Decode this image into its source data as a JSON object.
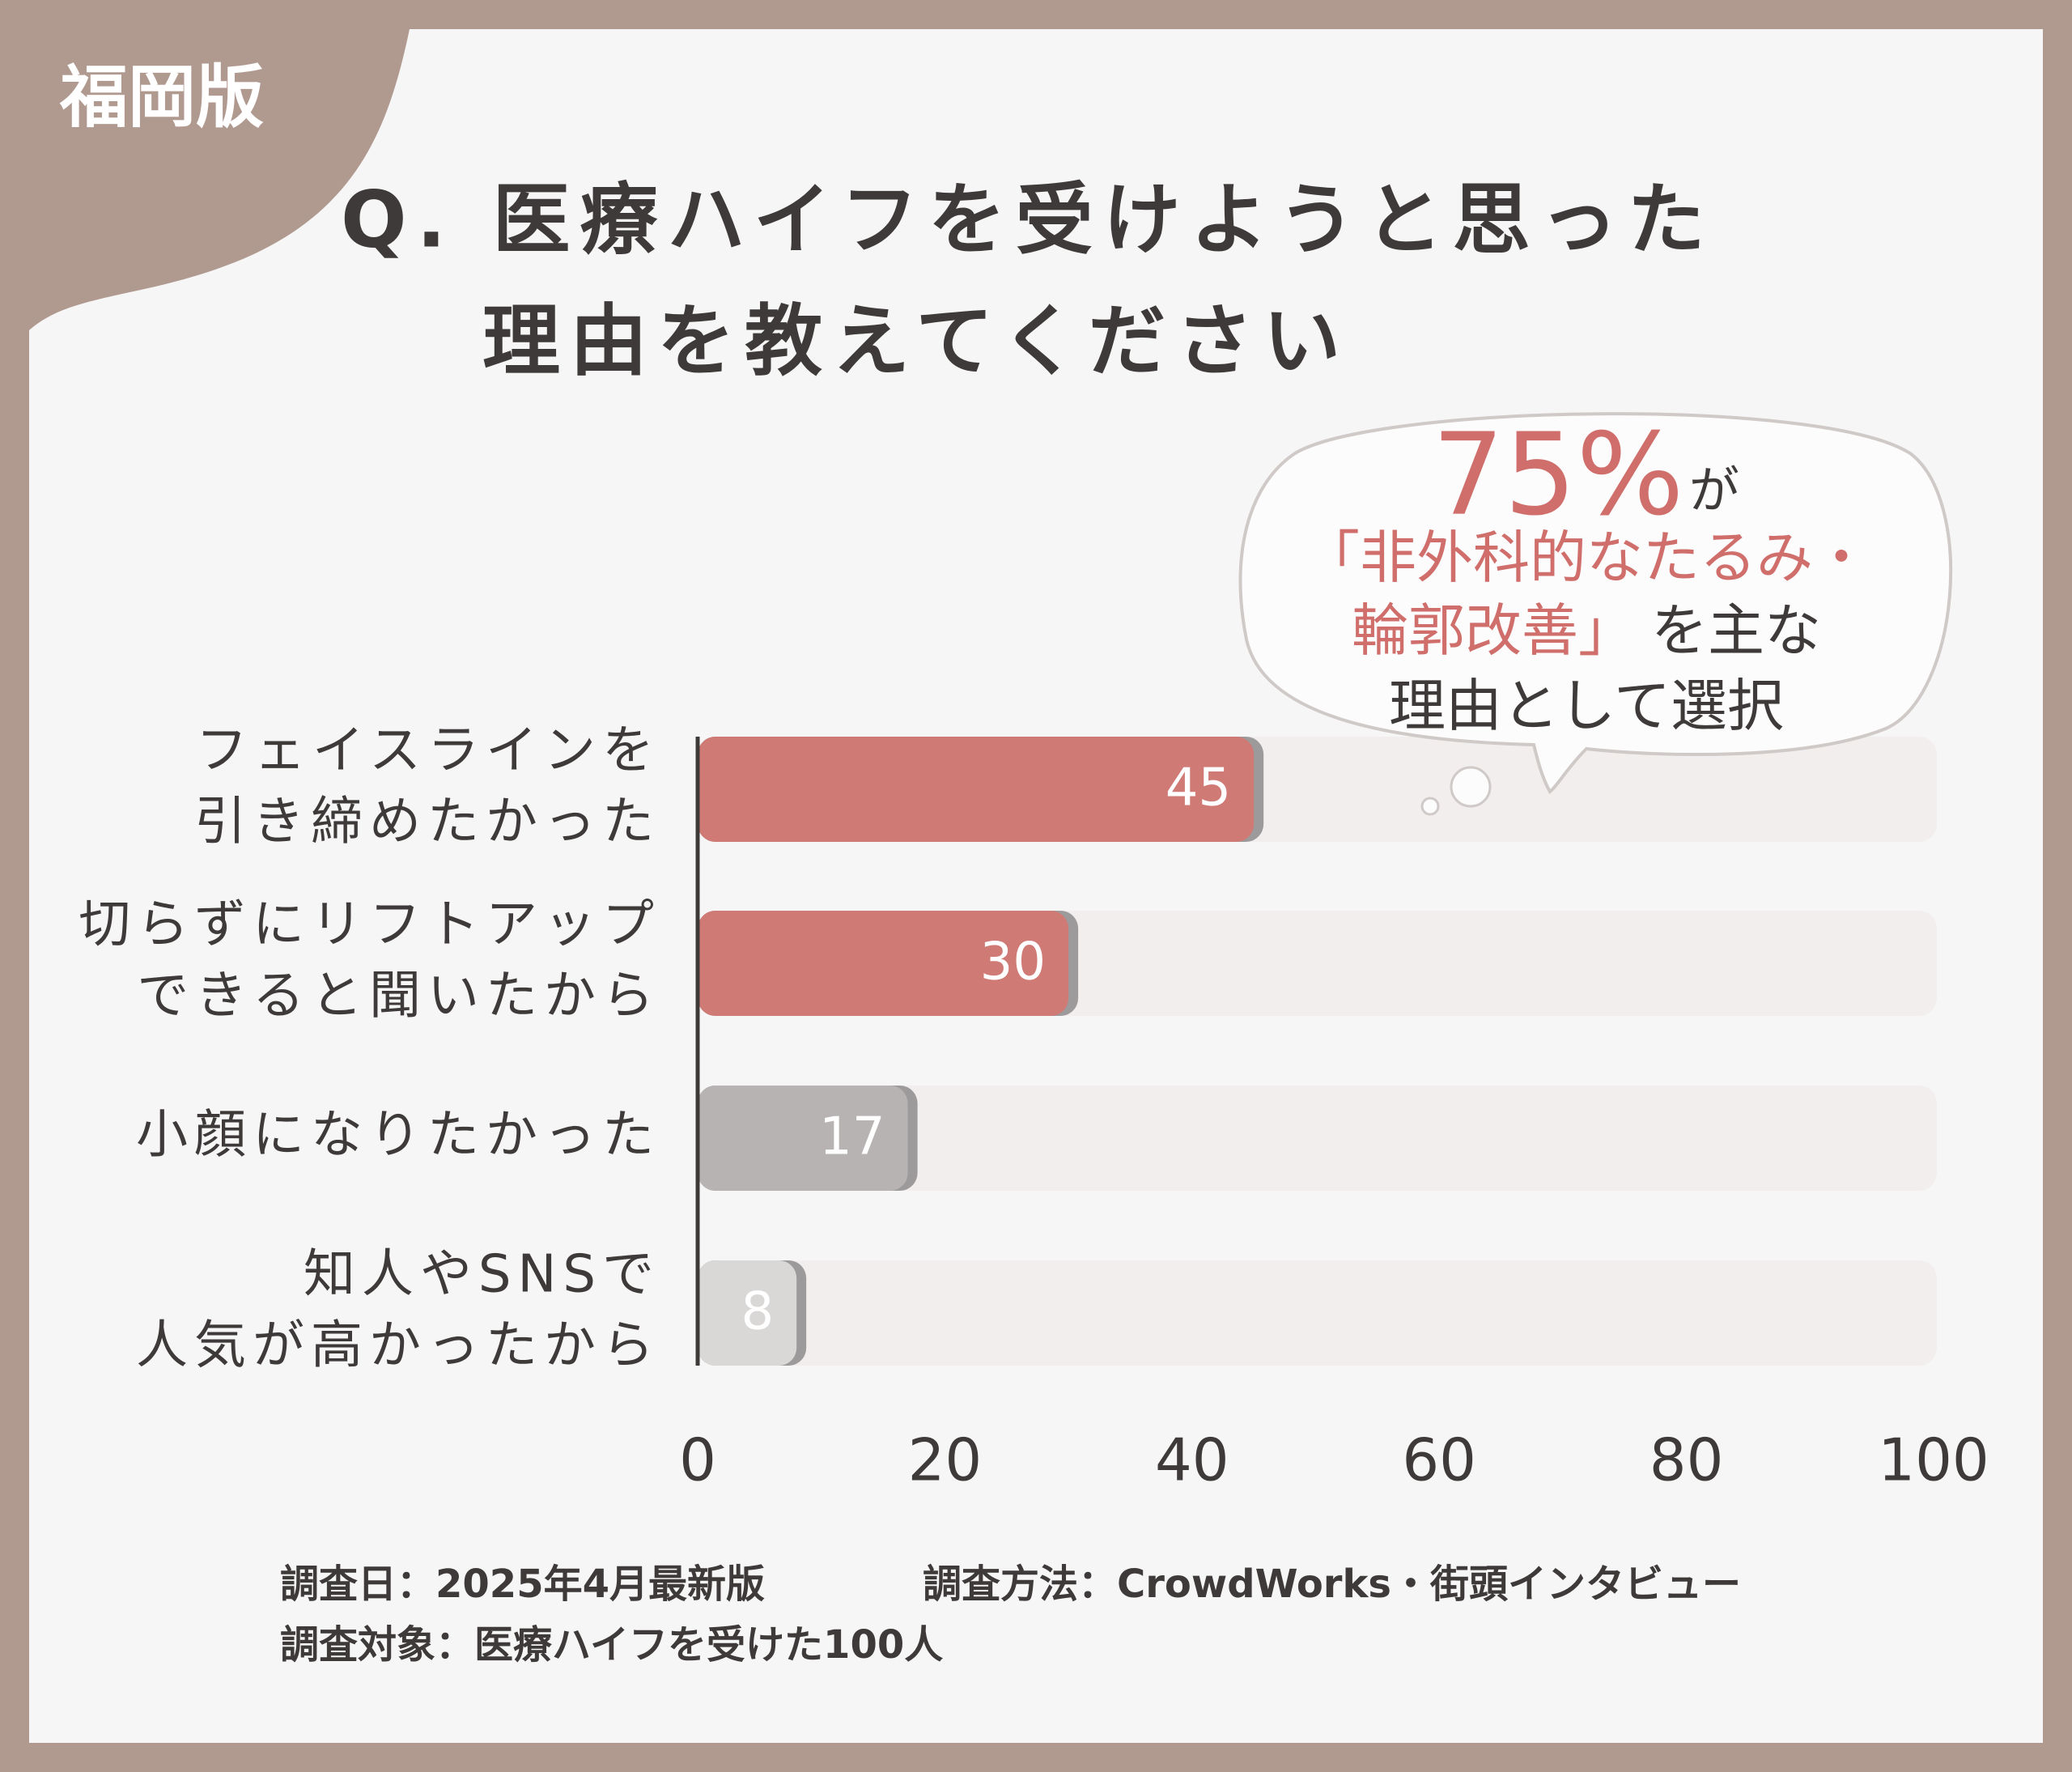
{
  "badge": "福岡版",
  "chart_data": {
    "type": "bar",
    "orientation": "horizontal",
    "title": [
      "Q. 医療ハイフを受けようと思った",
      "理由を教えてください"
    ],
    "categories": [
      [
        "フェイスラインを",
        "引き締めたかった"
      ],
      [
        "切らずにリフトアップ",
        "できると聞いたから"
      ],
      [
        "小顔になりたかった"
      ],
      [
        "知人やSNSで",
        "人気が高かったから"
      ]
    ],
    "values": [
      45,
      30,
      17,
      8
    ],
    "colors": [
      "#d07a76",
      "#d07a76",
      "#b7b3b2",
      "#dad8d7"
    ],
    "track_color": "#f1eeed",
    "xlim": [
      0,
      100
    ],
    "xticks": [
      0,
      20,
      40,
      60,
      80,
      100
    ],
    "callout": {
      "percent": "75%",
      "particle": "が",
      "highlight": [
        "「非外科的なたるみ・",
        "輪郭改善」"
      ],
      "rest": [
        "を主な",
        "理由として選択"
      ]
    }
  },
  "footer": {
    "date": "調査日：2025年4月最新版",
    "method": "調査方法：CrowdWorks・街頭インタビュー",
    "target": "調査対象：医療ハイフを受けた100人"
  }
}
